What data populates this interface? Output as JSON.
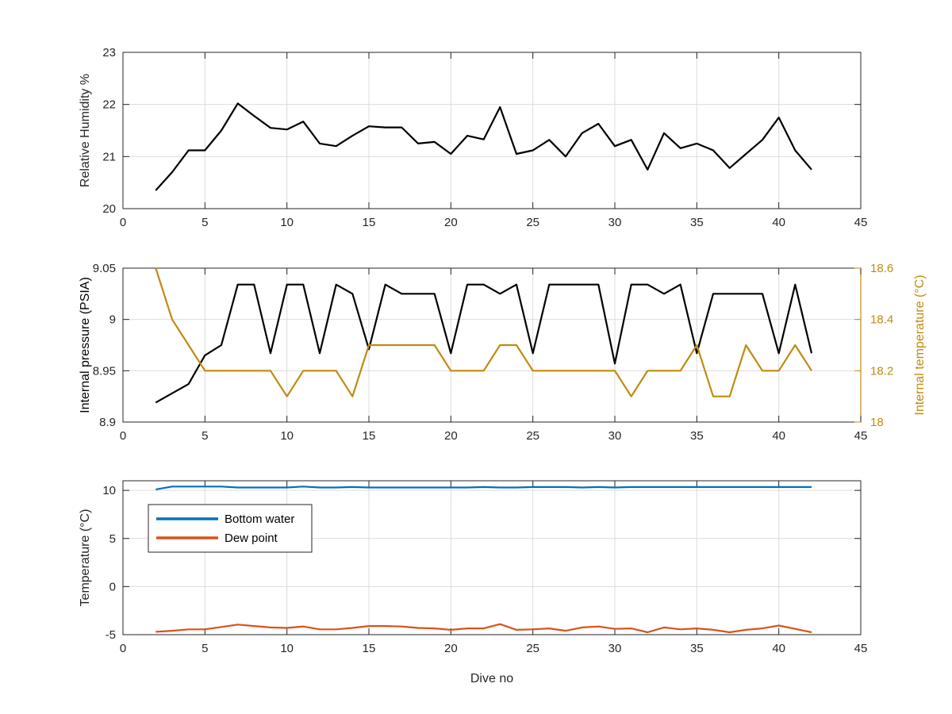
{
  "colors": {
    "axes": "#262626",
    "grid": "#dcdcdc",
    "humidity": "#000000",
    "pressure": "#000000",
    "internal_temp": "#c08b0f",
    "bottom_water": "#0072bd",
    "dew_point": "#d95319"
  },
  "chart_data": [
    {
      "type": "line",
      "xlabel": "",
      "ylabel": "Relative Humidity %",
      "xlim": [
        0,
        45
      ],
      "ylim": [
        20,
        23
      ],
      "xticks": [
        0,
        5,
        10,
        15,
        20,
        25,
        30,
        35,
        40,
        45
      ],
      "yticks": [
        20,
        21,
        22,
        23
      ],
      "grid": true,
      "series": [
        {
          "x": [
            2,
            3,
            4,
            5,
            6,
            7,
            8,
            9,
            10,
            11,
            12,
            13,
            14,
            15,
            16,
            17,
            18,
            19,
            20,
            21,
            22,
            23,
            24,
            25,
            26,
            27,
            28,
            29,
            30,
            31,
            32,
            33,
            34,
            35,
            36,
            37,
            38,
            39,
            40,
            41,
            42
          ],
          "values": [
            20.35,
            20.7,
            21.12,
            21.12,
            21.5,
            22.02,
            21.78,
            21.55,
            21.52,
            21.67,
            21.25,
            21.2,
            21.4,
            21.58,
            21.56,
            21.56,
            21.25,
            21.28,
            21.05,
            21.4,
            21.33,
            21.95,
            21.05,
            21.12,
            21.32,
            21.0,
            21.45,
            21.63,
            21.2,
            21.32,
            20.75,
            21.45,
            21.16,
            21.25,
            21.12,
            20.78,
            21.05,
            21.32,
            21.75,
            21.12,
            20.75
          ]
        }
      ]
    },
    {
      "type": "line",
      "xlabel": "",
      "ylabel": "Internal pressure (PSIA)",
      "y2label": "Internal temperature (°C)",
      "xlim": [
        0,
        45
      ],
      "ylim": [
        8.9,
        9.05
      ],
      "y2lim": [
        18,
        18.6
      ],
      "xticks": [
        0,
        5,
        10,
        15,
        20,
        25,
        30,
        35,
        40,
        45
      ],
      "yticks": [
        "8.9",
        "8.95",
        "9",
        "9.05"
      ],
      "y2ticks": [
        "18",
        "18.2",
        "18.4",
        "18.6"
      ],
      "grid": true,
      "series": [
        {
          "axis": "left",
          "x": [
            2,
            4,
            5,
            6,
            7,
            8,
            9,
            10,
            11,
            12,
            13,
            14,
            15,
            16,
            17,
            18,
            19,
            20,
            21,
            22,
            23,
            24,
            25,
            26,
            27,
            28,
            29,
            30,
            31,
            32,
            33,
            34,
            35,
            36,
            37,
            38,
            39,
            40,
            41,
            42
          ],
          "values": [
            8.919,
            8.937,
            8.965,
            8.975,
            9.034,
            9.034,
            8.967,
            9.034,
            9.034,
            8.967,
            9.034,
            9.025,
            8.971,
            9.034,
            9.025,
            9.025,
            9.025,
            8.967,
            9.034,
            9.034,
            9.025,
            9.034,
            8.967,
            9.034,
            9.034,
            9.034,
            9.034,
            8.957,
            9.034,
            9.034,
            9.025,
            9.034,
            8.967,
            9.025,
            9.025,
            9.025,
            9.025,
            8.967,
            9.034,
            8.967
          ]
        },
        {
          "axis": "right",
          "x": [
            2,
            3,
            4,
            5,
            6,
            7,
            8,
            9,
            10,
            11,
            12,
            13,
            14,
            15,
            16,
            17,
            18,
            19,
            20,
            21,
            22,
            23,
            24,
            25,
            26,
            27,
            28,
            29,
            30,
            31,
            32,
            33,
            34,
            35,
            36,
            37,
            38,
            39,
            40,
            41,
            42
          ],
          "values": [
            18.6,
            18.4,
            18.3,
            18.2,
            18.2,
            18.2,
            18.2,
            18.2,
            18.1,
            18.2,
            18.2,
            18.2,
            18.1,
            18.3,
            18.3,
            18.3,
            18.3,
            18.3,
            18.2,
            18.2,
            18.2,
            18.3,
            18.3,
            18.2,
            18.2,
            18.2,
            18.2,
            18.2,
            18.2,
            18.1,
            18.2,
            18.2,
            18.2,
            18.3,
            18.1,
            18.1,
            18.3,
            18.2,
            18.2,
            18.3,
            18.2
          ]
        }
      ]
    },
    {
      "type": "line",
      "xlabel": "Dive no",
      "ylabel": "Temperature (°C)",
      "xlim": [
        0,
        45
      ],
      "ylim": [
        -5,
        11
      ],
      "xticks": [
        0,
        5,
        10,
        15,
        20,
        25,
        30,
        35,
        40,
        45
      ],
      "yticks": [
        -5,
        0,
        5,
        10
      ],
      "grid": true,
      "legend": "top-left",
      "series": [
        {
          "name": "Bottom water",
          "x": [
            2,
            3,
            4,
            5,
            6,
            7,
            8,
            9,
            10,
            11,
            12,
            13,
            14,
            15,
            16,
            17,
            18,
            19,
            20,
            21,
            22,
            23,
            24,
            25,
            26,
            27,
            28,
            29,
            30,
            31,
            32,
            33,
            34,
            35,
            36,
            37,
            38,
            39,
            40,
            41,
            42
          ],
          "values": [
            10.1,
            10.4,
            10.4,
            10.4,
            10.4,
            10.3,
            10.3,
            10.3,
            10.3,
            10.4,
            10.3,
            10.3,
            10.35,
            10.3,
            10.3,
            10.3,
            10.3,
            10.3,
            10.3,
            10.3,
            10.35,
            10.3,
            10.3,
            10.35,
            10.35,
            10.35,
            10.3,
            10.35,
            10.3,
            10.35,
            10.35,
            10.35,
            10.35,
            10.35,
            10.35,
            10.35,
            10.35,
            10.35,
            10.35,
            10.35,
            10.35
          ]
        },
        {
          "name": "Dew point",
          "x": [
            2,
            3,
            4,
            5,
            6,
            7,
            8,
            9,
            10,
            11,
            12,
            13,
            14,
            15,
            16,
            17,
            18,
            19,
            20,
            21,
            22,
            23,
            24,
            25,
            26,
            27,
            28,
            29,
            30,
            31,
            32,
            33,
            34,
            35,
            36,
            37,
            38,
            39,
            40,
            41,
            42
          ],
          "values": [
            -4.7,
            -4.6,
            -4.45,
            -4.45,
            -4.2,
            -3.95,
            -4.1,
            -4.25,
            -4.3,
            -4.15,
            -4.45,
            -4.45,
            -4.3,
            -4.1,
            -4.1,
            -4.15,
            -4.3,
            -4.35,
            -4.5,
            -4.35,
            -4.35,
            -3.9,
            -4.5,
            -4.45,
            -4.35,
            -4.6,
            -4.25,
            -4.15,
            -4.4,
            -4.35,
            -4.75,
            -4.25,
            -4.45,
            -4.35,
            -4.5,
            -4.75,
            -4.5,
            -4.35,
            -4.05,
            -4.4,
            -4.75
          ]
        }
      ]
    }
  ]
}
